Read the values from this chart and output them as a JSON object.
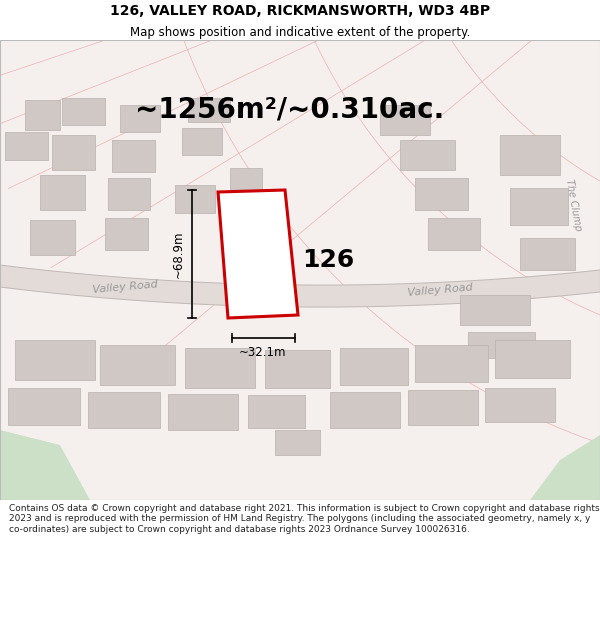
{
  "title_line1": "126, VALLEY ROAD, RICKMANSWORTH, WD3 4BP",
  "title_line2": "Map shows position and indicative extent of the property.",
  "area_text": "~1256m²/~0.310ac.",
  "label_126": "126",
  "dim_height": "~68.9m",
  "dim_width": "~32.1m",
  "valley_road_label_left": "Valley Road",
  "valley_road_label_right": "Valley Road",
  "the_clump_label": "The Clump",
  "footer_text": "Contains OS data © Crown copyright and database right 2021. This information is subject to Crown copyright and database rights 2023 and is reproduced with the permission of HM Land Registry. The polygons (including the associated geometry, namely x, y co-ordinates) are subject to Crown copyright and database rights 2023 Ordnance Survey 100026316.",
  "bg_color": "#ffffff",
  "map_bg": "#f5f0ee",
  "road_fill": "#e2dbd8",
  "plot_outline_color": "#cc0000",
  "plot_fill": "#ffffff",
  "grid_line_color": "#f0b0b0",
  "building_fill": "#d0c8c5",
  "building_edge": "#b8b0ac",
  "green_area_color": "#cce0c8",
  "road_line_color": "#c0b8b4",
  "dim_line_color": "#000000",
  "text_color": "#000000",
  "road_text_color": "#999999",
  "footer_color": "#222222",
  "title_fontsize": 10,
  "subtitle_fontsize": 8.5,
  "area_fontsize": 20,
  "label_fontsize": 18,
  "dim_fontsize": 8.5,
  "road_fontsize": 8,
  "clump_fontsize": 7,
  "footer_fontsize": 6.5
}
